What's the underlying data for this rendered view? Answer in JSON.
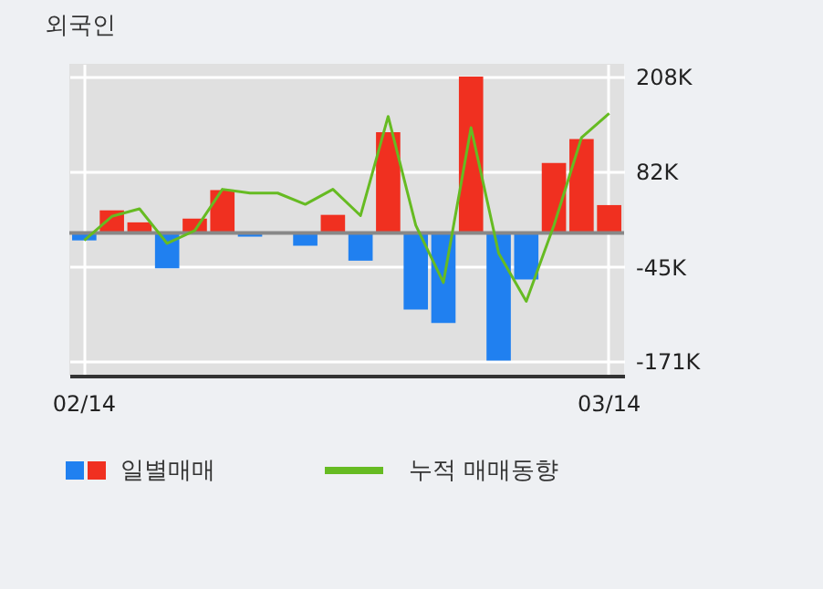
{
  "chart_data": {
    "type": "bar",
    "title": "외국인",
    "categories": [
      "02/14",
      null,
      null,
      null,
      null,
      null,
      null,
      null,
      null,
      null,
      null,
      null,
      null,
      null,
      null,
      null,
      null,
      null,
      null,
      "03/14"
    ],
    "series": [
      {
        "name": "일별매매",
        "type": "bar",
        "colors": [
          "#2080f0",
          "#f03020",
          "#f03020",
          "#2080f0",
          "#f03020",
          "#f03020",
          "#2080f0",
          "#f03020",
          "#2080f0",
          "#f03020",
          "#2080f0",
          "#f03020",
          "#2080f0",
          "#2080f0",
          "#f03020",
          "#2080f0",
          "#2080f0",
          "#f03020",
          "#f03020",
          "#f03020"
        ],
        "values": [
          -10,
          30,
          14,
          -47,
          19,
          57,
          -5,
          0,
          -17,
          24,
          -37,
          134,
          -102,
          -120,
          208,
          -170,
          -62,
          93,
          125,
          37
        ]
      },
      {
        "name": "누적 매매동향",
        "type": "line",
        "color": "#66bb22",
        "values": [
          -10,
          22,
          32,
          -14,
          3,
          58,
          53,
          53,
          38,
          58,
          23,
          155,
          10,
          -66,
          140,
          -27,
          -91,
          10,
          127,
          159
        ]
      }
    ],
    "ylim": [
      -190,
      225
    ],
    "yticks": [
      {
        "value": 208,
        "label": "208K"
      },
      {
        "value": 82,
        "label": "82K"
      },
      {
        "value": -45,
        "label": "-45K"
      },
      {
        "value": -171,
        "label": "-171K"
      }
    ],
    "grid": true,
    "legend": "bottom"
  }
}
